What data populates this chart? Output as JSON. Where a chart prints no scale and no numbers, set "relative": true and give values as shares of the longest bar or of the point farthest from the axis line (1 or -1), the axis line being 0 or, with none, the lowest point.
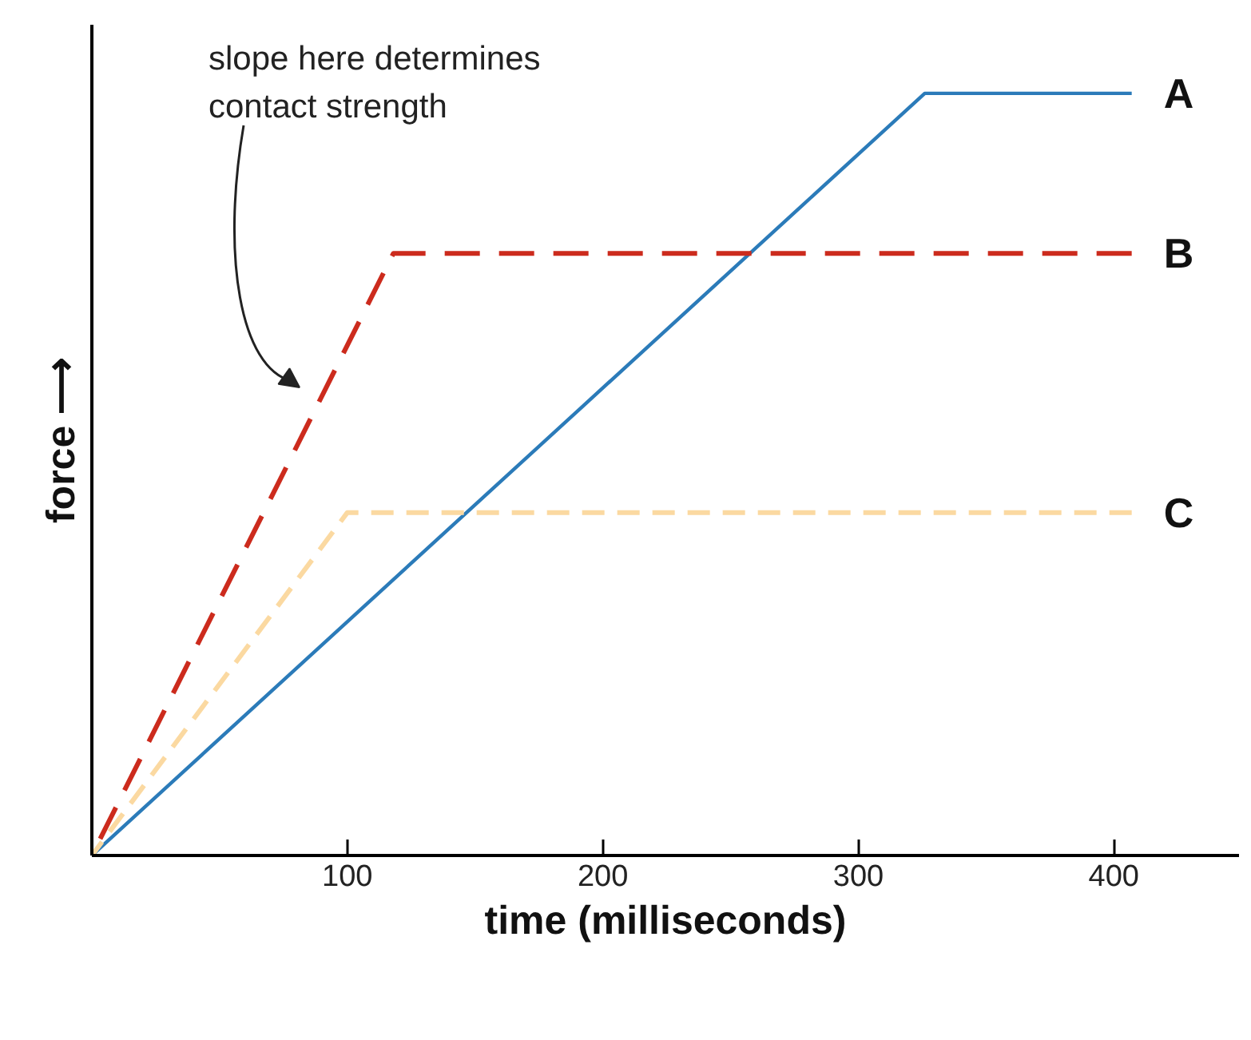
{
  "chart_data": {
    "type": "line",
    "relative": true,
    "xlabel": "time (milliseconds)",
    "ylabel": "force ⟶",
    "xlim": [
      0,
      449
    ],
    "xticks": [
      100,
      200,
      300,
      400
    ],
    "tick_labels": "x",
    "grid": false,
    "marker": "none",
    "series": [
      {
        "name": "A",
        "color": "#2b7bb9",
        "line_style": "solid",
        "x": [
          0,
          326,
          407
        ],
        "values": [
          0,
          1,
          1
        ]
      },
      {
        "name": "B",
        "color": "#cc2b1d",
        "line_style": "dashed",
        "x": [
          0,
          118,
          407
        ],
        "values": [
          0,
          0.79,
          0.79
        ]
      },
      {
        "name": "C",
        "color": "#fbd9a1",
        "line_style": "dashed",
        "x": [
          0,
          100,
          407
        ],
        "values": [
          0,
          0.45,
          0.45
        ]
      }
    ],
    "annotations": [
      "slope here determines\ncontact strength"
    ]
  }
}
